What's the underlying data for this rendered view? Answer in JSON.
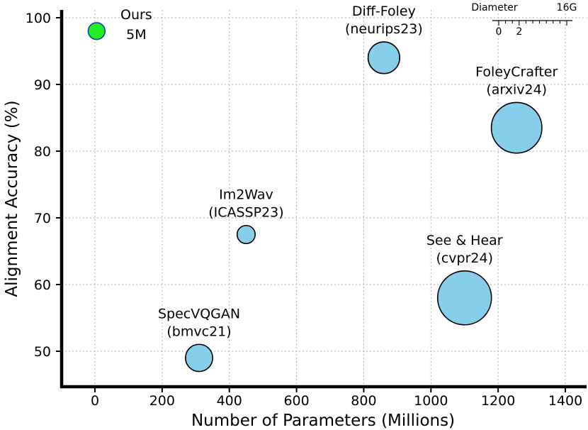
{
  "chart_data": {
    "type": "scatter",
    "subtype": "bubble",
    "title": "",
    "xlabel": "Number of Parameters (Millions)",
    "ylabel": "Alignment Accuracy (%)",
    "xlim": [
      -100,
      1450
    ],
    "ylim": [
      44,
      102
    ],
    "xticks": [
      0,
      200,
      400,
      600,
      800,
      1000,
      1200,
      1400
    ],
    "yticks": [
      50,
      60,
      70,
      80,
      90,
      100
    ],
    "grid": true,
    "colors": {
      "ours": "#22ee22",
      "others": "#87ceeb",
      "ours_edge": "#1a3fb0",
      "edge": "#000000"
    },
    "points": [
      {
        "name": "Ours",
        "sub": "5M",
        "x": 5,
        "y": 98,
        "radius_units": 4.1,
        "highlight": true
      },
      {
        "name": "Diff-Foley",
        "sub": "(neurips23)",
        "x": 860,
        "y": 94,
        "radius_units": 7.7
      },
      {
        "name": "FoleyCrafter",
        "sub": "(arxiv24)",
        "x": 1255,
        "y": 83.5,
        "radius_units": 12.3
      },
      {
        "name": "Im2Wav",
        "sub": "(ICASSP23)",
        "x": 450,
        "y": 67.5,
        "radius_units": 4.4
      },
      {
        "name": "See & Hear",
        "sub": "(cvpr24)",
        "x": 1100,
        "y": 58,
        "radius_units": 13.1
      },
      {
        "name": "SpecVQGAN",
        "sub": "(bmvc21)",
        "x": 310,
        "y": 49,
        "radius_units": 6.6
      }
    ],
    "legend": {
      "title": "Diameter",
      "min_label": "0",
      "mid_label": "2",
      "max_label": "16G",
      "position": "top-right"
    }
  }
}
